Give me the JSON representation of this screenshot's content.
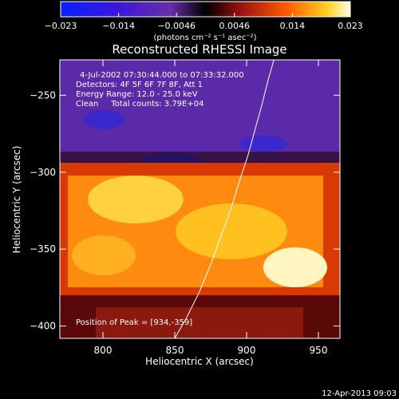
{
  "chart_data": {
    "type": "heatmap",
    "title": "Reconstructed RHESSI Image",
    "xlabel": "Heliocentric X (arcsec)",
    "ylabel": "Heliocentric Y (arcsec)",
    "xlim": [
      770,
      965
    ],
    "ylim": [
      -408,
      -227
    ],
    "xticks": [
      800,
      850,
      900,
      950
    ],
    "yticks": [
      -250,
      -300,
      -350,
      -400
    ],
    "colorbar": {
      "range": [
        -0.023,
        0.023
      ],
      "ticks": [
        "−0.023",
        "−0.014",
        "−0.0046",
        "0.0046",
        "0.014",
        "0.023"
      ],
      "unit_label": "(photons cm⁻² s⁻¹ asec⁻²)"
    },
    "annotations": [
      "4-Jul-2002 07:30:44.000 to 07:33:32.000",
      "Detectors: 4F 5F 6F 7F 8F, Att 1",
      "Energy Range: 12.0 - 25.0 keV",
      "Clean     Total counts: 3.79E+04"
    ],
    "peak_label": "Position of Peak = [934,-359]",
    "peak": [
      934,
      -359
    ],
    "limb_curve": [
      [
        850,
        -408
      ],
      [
        858,
        -395
      ],
      [
        867,
        -378
      ],
      [
        875,
        -360
      ],
      [
        882,
        -342
      ],
      [
        889,
        -324
      ],
      [
        895,
        -306
      ],
      [
        901,
        -289
      ],
      [
        906,
        -272
      ],
      [
        911,
        -255
      ],
      [
        915,
        -240
      ],
      [
        919,
        -227
      ]
    ],
    "grid": false,
    "footer_timestamp": "12-Apr-2013 09:03"
  }
}
